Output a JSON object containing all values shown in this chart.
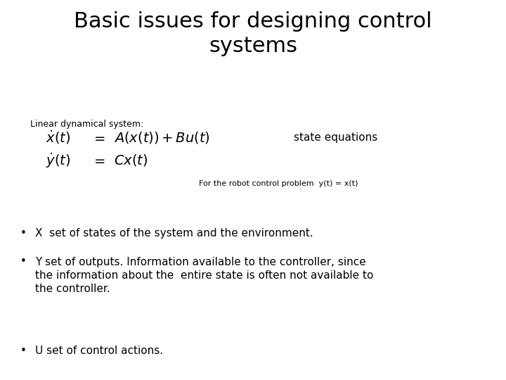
{
  "title": "Basic issues for designing control\nsystems",
  "title_fontsize": 22,
  "title_fontfamily": "DejaVu Sans",
  "background_color": "#ffffff",
  "text_color": "#000000",
  "label_linear": "Linear dynamical system:",
  "label_linear_fontsize": 9,
  "eq1_lhs": "$\\dot{x}(t)$",
  "eq1_mid": "$=$",
  "eq1_rhs": "$A(x(t)) + Bu(t)$",
  "eq1_label": "state equations",
  "eq2_lhs": "$\\dot{y}(t)$",
  "eq2_mid": "$=$",
  "eq2_rhs": "$Cx(t)$",
  "robot_note": "For the robot control problem  y(t) = x(t)",
  "robot_note_fontsize": 8,
  "bullet1": "X  set of states of the system and the environment.",
  "bullet2": "Y set of outputs. Information available to the controller, since\nthe information about the  entire state is often not available to\nthe controller.",
  "bullet3": "U set of control actions.",
  "bullet_fontsize": 11,
  "eq_fontsize": 14,
  "state_eq_fontsize": 11
}
